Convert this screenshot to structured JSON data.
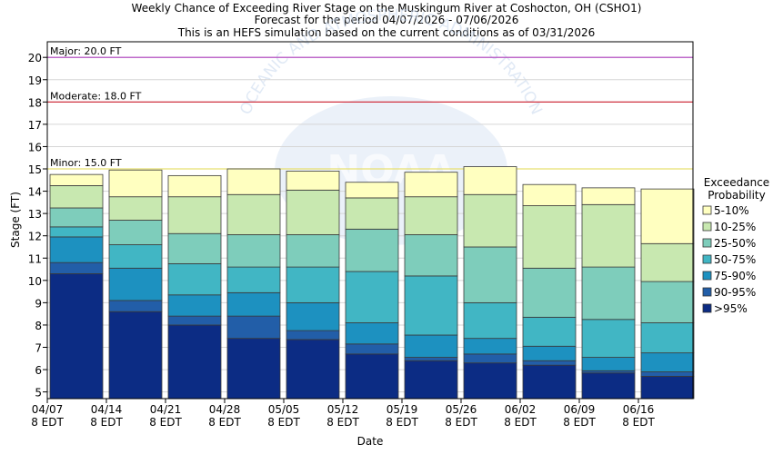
{
  "chart_data": {
    "type": "bar",
    "title_lines": [
      "Weekly Chance of Exceeding River Stage on the Muskingum River at Coshocton, OH (CSHO1)",
      "Forecast for the period 04/07/2026 - 07/06/2026",
      "This is an HEFS simulation based on the current conditions as of 03/31/2026"
    ],
    "xlabel": "Date",
    "ylabel": "Stage (FT)",
    "ylim": [
      4.7,
      20.7
    ],
    "yticks": [
      5,
      6,
      7,
      8,
      9,
      10,
      11,
      12,
      13,
      14,
      15,
      16,
      17,
      18,
      19,
      20
    ],
    "xticks": [
      {
        "line1": "04/07",
        "line2": "8 EDT"
      },
      {
        "line1": "04/14",
        "line2": "8 EDT"
      },
      {
        "line1": "04/21",
        "line2": "8 EDT"
      },
      {
        "line1": "04/28",
        "line2": "8 EDT"
      },
      {
        "line1": "05/05",
        "line2": "8 EDT"
      },
      {
        "line1": "05/12",
        "line2": "8 EDT"
      },
      {
        "line1": "05/19",
        "line2": "8 EDT"
      },
      {
        "line1": "05/26",
        "line2": "8 EDT"
      },
      {
        "line1": "06/02",
        "line2": "8 EDT"
      },
      {
        "line1": "06/09",
        "line2": "8 EDT"
      },
      {
        "line1": "06/16",
        "line2": "8 EDT"
      }
    ],
    "thresholds": [
      {
        "label": "Major: 20.0 FT",
        "value": 20.0,
        "color": "#b040c0"
      },
      {
        "label": "Moderate: 18.0 FT",
        "value": 18.0,
        "color": "#d02030"
      },
      {
        "label": "Minor: 15.0 FT",
        "value": 15.0,
        "color": "#e8e070"
      }
    ],
    "legend_title_lines": [
      "Exceedance",
      "Probability"
    ],
    "legend": [
      {
        "label": "5-10%",
        "color": "#ffffc0"
      },
      {
        "label": "10-25%",
        "color": "#c8e8b0"
      },
      {
        "label": "25-50%",
        "color": "#7ecdbb"
      },
      {
        "label": "50-75%",
        "color": "#41b6c4"
      },
      {
        "label": "75-90%",
        "color": "#1d91c0"
      },
      {
        "label": "90-95%",
        "color": "#225ea8"
      },
      {
        "label": ">95%",
        "color": "#0c2c84"
      }
    ],
    "legend_placement": "right",
    "weeks": [
      [
        10.3,
        10.8,
        11.95,
        12.4,
        13.25,
        14.25,
        14.75
      ],
      [
        8.6,
        9.1,
        10.55,
        11.6,
        12.7,
        13.75,
        14.95
      ],
      [
        8.0,
        8.4,
        9.35,
        10.75,
        12.1,
        13.75,
        14.7
      ],
      [
        7.4,
        8.4,
        9.45,
        10.6,
        12.05,
        13.85,
        15.0
      ],
      [
        7.35,
        7.75,
        9.0,
        10.6,
        12.05,
        14.05,
        14.9
      ],
      [
        6.7,
        7.15,
        8.1,
        10.4,
        12.3,
        13.7,
        14.4
      ],
      [
        6.4,
        6.55,
        7.55,
        10.2,
        12.05,
        13.75,
        14.85
      ],
      [
        6.3,
        6.7,
        7.4,
        9.0,
        11.5,
        13.85,
        15.1
      ],
      [
        6.2,
        6.4,
        7.05,
        8.35,
        10.55,
        13.35,
        14.3
      ],
      [
        5.85,
        5.95,
        6.55,
        8.25,
        10.6,
        13.4,
        14.15
      ],
      [
        5.7,
        5.9,
        6.75,
        8.1,
        9.95,
        11.65,
        14.1
      ]
    ]
  },
  "watermark": {
    "arc_text": "OCEANIC AND ATMOSPHERIC ADMINISTRATION",
    "logo_text": "NOAA"
  }
}
